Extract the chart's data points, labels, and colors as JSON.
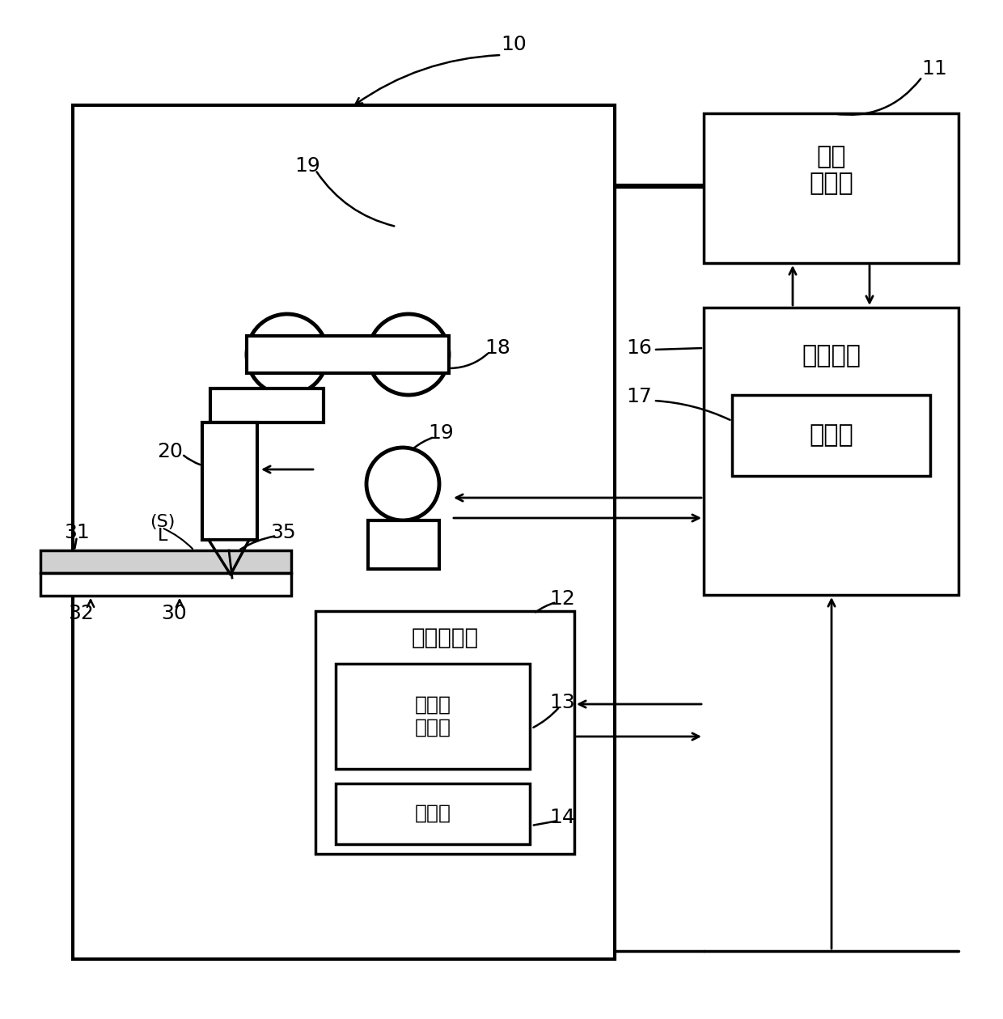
{
  "bg": "#ffffff",
  "fig_w": 12.4,
  "fig_h": 12.59,
  "dpi": 100,
  "texts": {
    "laser_osc": "激光\n振荡器",
    "control": "控制装置",
    "hantebu": "判定部",
    "opt_int": "光学干渉仪",
    "sokutei_osc": "测定光\n振荡器",
    "sokuteibu": "测定部"
  },
  "font_size_chinese": 22,
  "font_size_number": 18,
  "font_size_small": 16
}
